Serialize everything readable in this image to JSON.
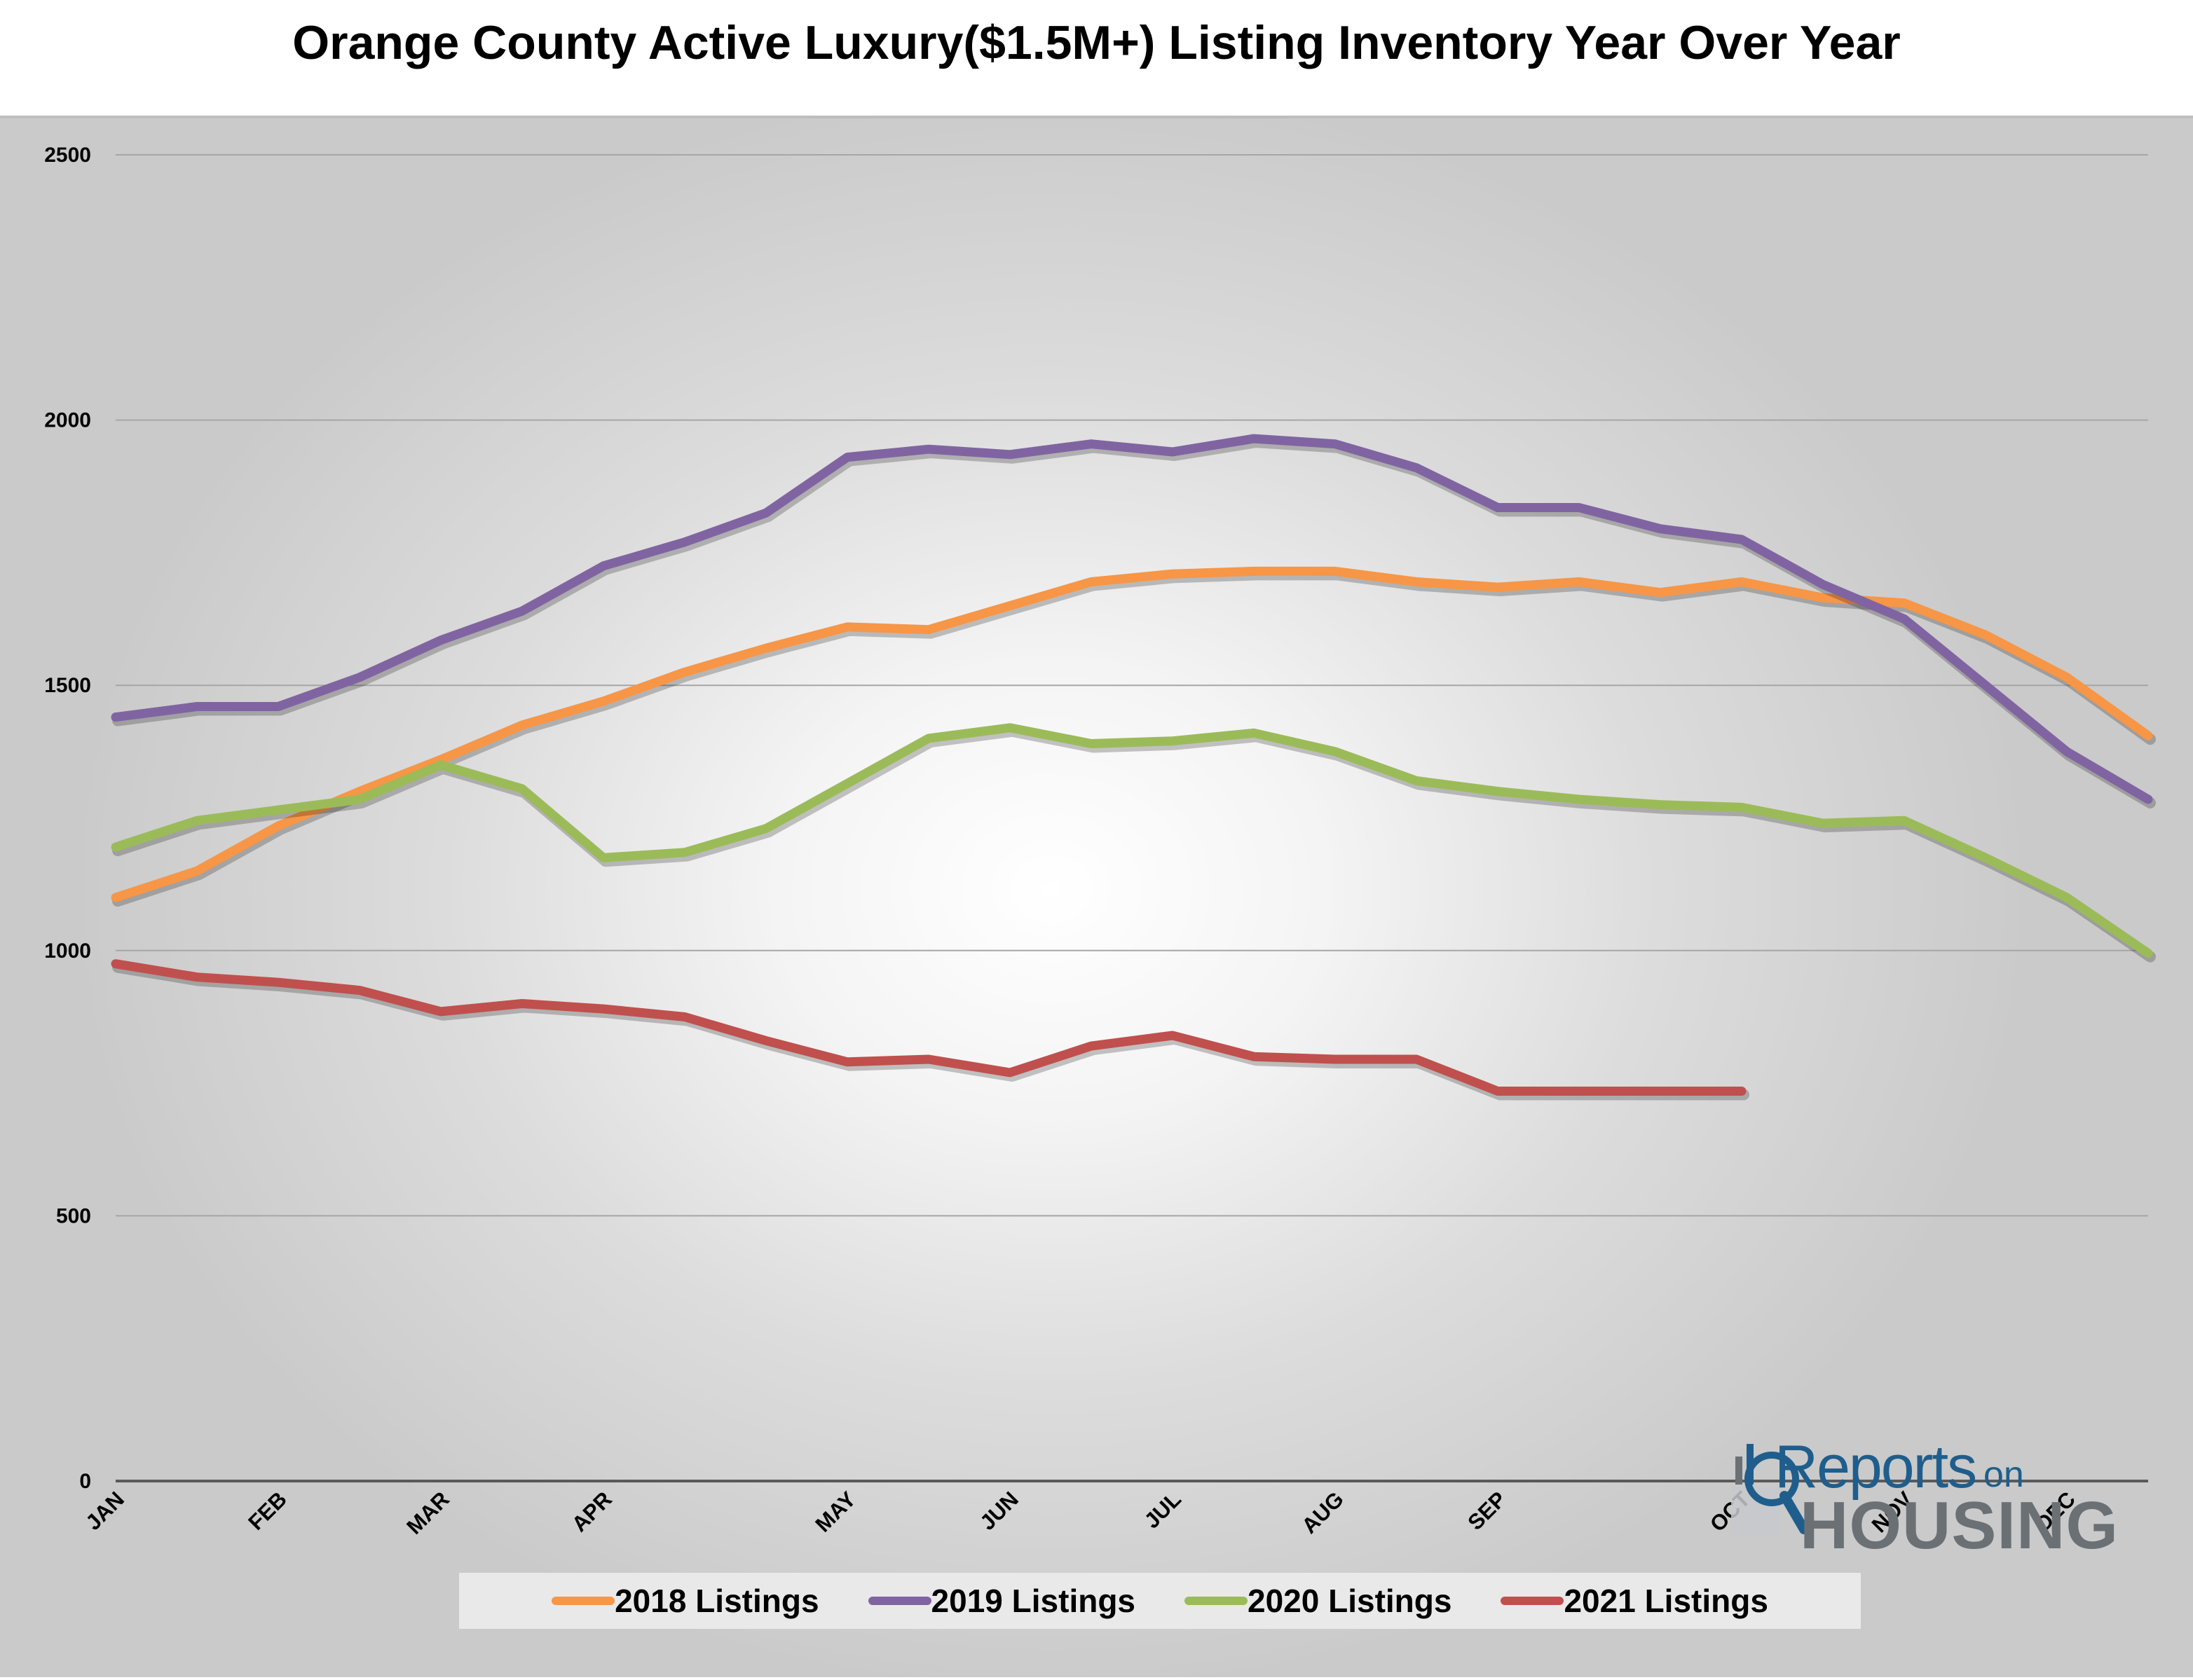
{
  "chart_data": {
    "type": "line",
    "title": "Orange County Active Luxury($1.5M+) Listing Inventory Year Over Year",
    "ylim": [
      0,
      2500
    ],
    "y_ticks": [
      0,
      500,
      1000,
      1500,
      2000,
      2500
    ],
    "x_ticks": [
      "JAN",
      "FEB",
      "MAR",
      "APR",
      "MAY",
      "JUN",
      "JUL",
      "AUG",
      "SEP",
      "OCT",
      "NOV",
      "DEC"
    ],
    "x_tick_weeks": [
      0,
      2,
      4,
      6,
      9,
      11,
      13,
      15,
      17,
      20,
      22,
      24
    ],
    "grid": true,
    "legend_position": "bottom",
    "series": [
      {
        "name": "2018 Listings",
        "color": "#f79646",
        "x": [
          0,
          1,
          2,
          3,
          4,
          5,
          6,
          7,
          8,
          9,
          10,
          11,
          12,
          13,
          14,
          15,
          16,
          17,
          18,
          19,
          20,
          21,
          22,
          23,
          24,
          25
        ],
        "values": [
          1100,
          1150,
          1235,
          1300,
          1360,
          1425,
          1470,
          1525,
          1570,
          1610,
          1605,
          1650,
          1695,
          1710,
          1715,
          1715,
          1695,
          1685,
          1695,
          1675,
          1695,
          1665,
          1655,
          1595,
          1515,
          1405
        ]
      },
      {
        "name": "2019 Listings",
        "color": "#8064a2",
        "x": [
          0,
          1,
          2,
          3,
          4,
          5,
          6,
          7,
          8,
          9,
          10,
          11,
          12,
          13,
          14,
          15,
          16,
          17,
          18,
          19,
          20,
          21,
          22,
          23,
          24,
          25
        ],
        "values": [
          1440,
          1460,
          1460,
          1515,
          1585,
          1640,
          1725,
          1770,
          1825,
          1930,
          1945,
          1935,
          1955,
          1940,
          1965,
          1955,
          1910,
          1835,
          1835,
          1795,
          1775,
          1690,
          1625,
          1500,
          1375,
          1285
        ]
      },
      {
        "name": "2020 Listings",
        "color": "#9bbb59",
        "x": [
          0,
          1,
          2,
          3,
          4,
          5,
          6,
          7,
          8,
          9,
          10,
          11,
          12,
          13,
          14,
          15,
          16,
          17,
          18,
          19,
          20,
          21,
          22,
          23,
          24,
          25
        ],
        "values": [
          1195,
          1245,
          1265,
          1285,
          1350,
          1305,
          1175,
          1185,
          1230,
          1315,
          1400,
          1420,
          1390,
          1395,
          1410,
          1375,
          1320,
          1300,
          1285,
          1275,
          1270,
          1240,
          1245,
          1175,
          1100,
          995
        ]
      },
      {
        "name": "2021 Listings",
        "color": "#c0504d",
        "x": [
          0,
          1,
          2,
          3,
          4,
          5,
          6,
          7,
          8,
          9,
          10,
          11,
          12,
          13,
          14,
          15,
          16,
          17,
          18,
          19,
          20
        ],
        "values": [
          975,
          950,
          940,
          925,
          885,
          900,
          890,
          875,
          830,
          790,
          795,
          770,
          820,
          840,
          800,
          795,
          795,
          735,
          735,
          735,
          735
        ]
      }
    ]
  },
  "logo": {
    "reports": "Reports",
    "on": "on",
    "housing": "HOUSING"
  }
}
